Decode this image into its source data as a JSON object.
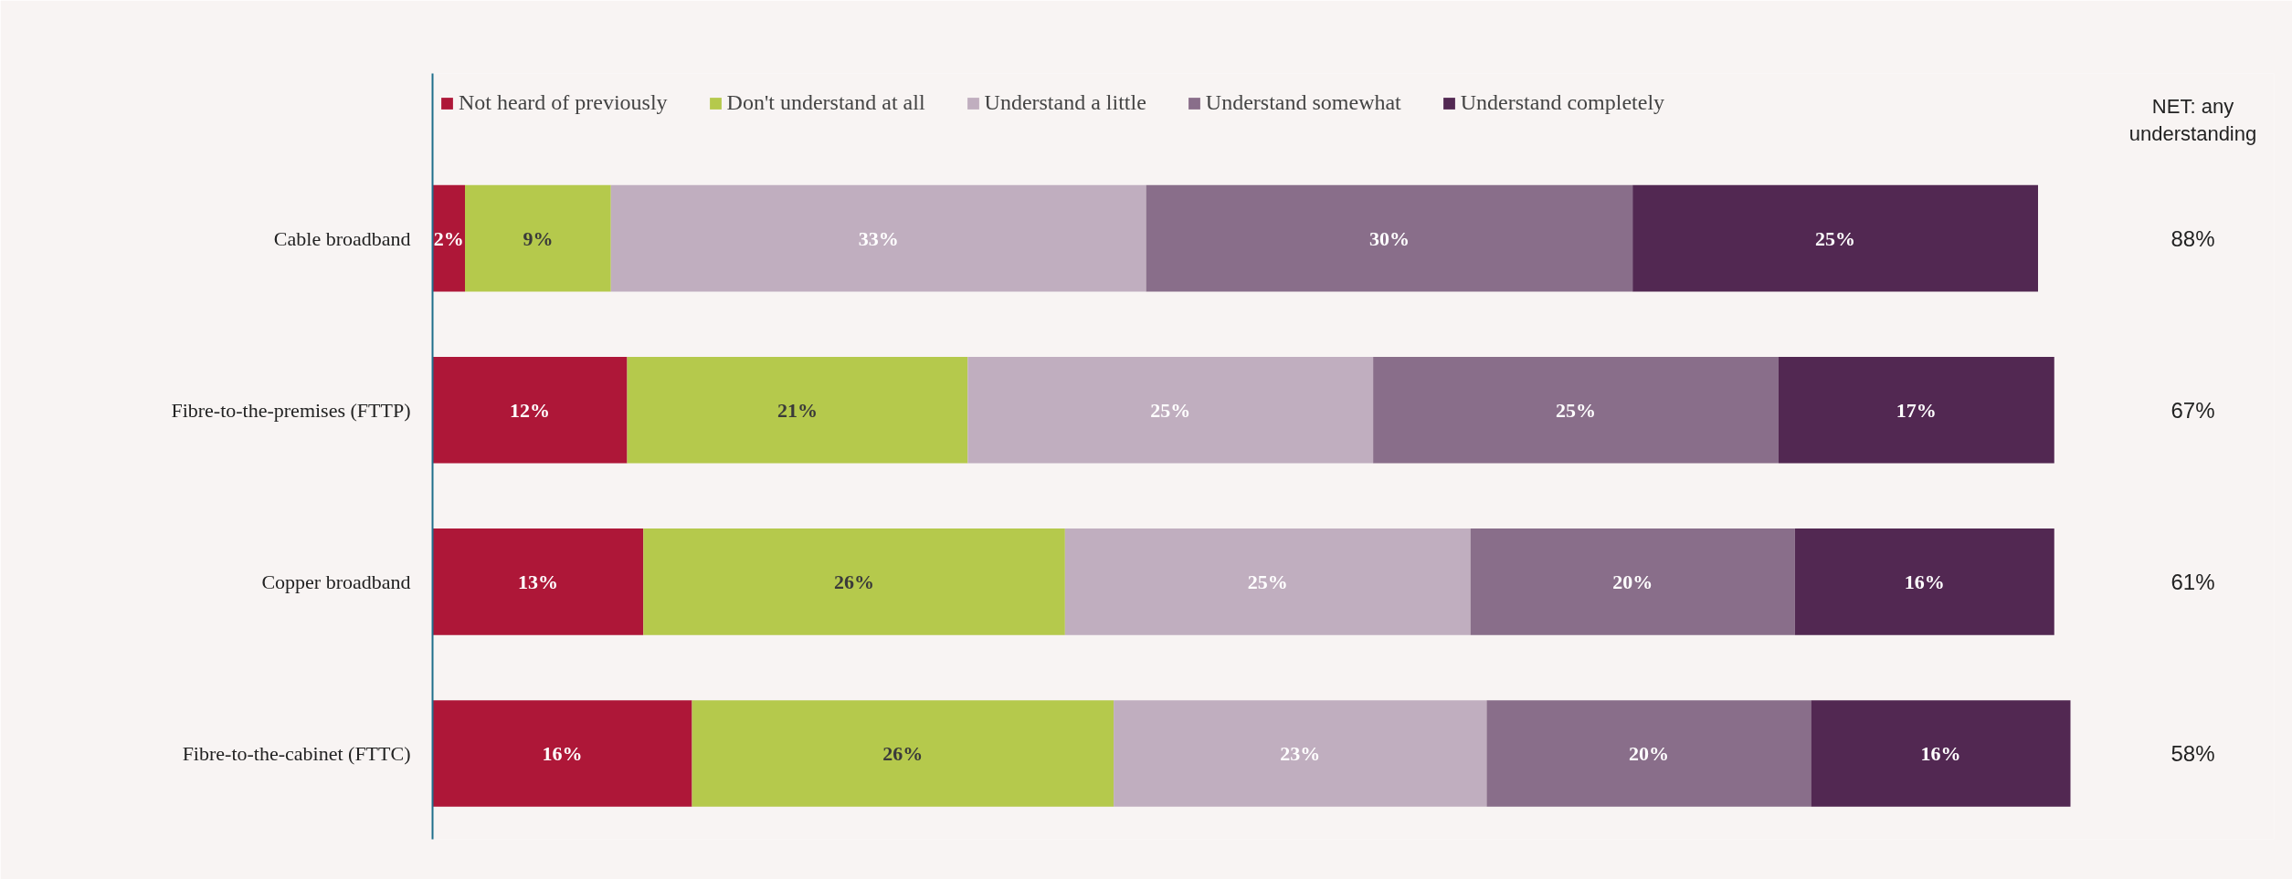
{
  "chart_data": {
    "type": "bar",
    "orientation": "horizontal",
    "stacked": true,
    "legend": "top",
    "grid": false,
    "categories": [
      "Cable broadband",
      "Fibre-to-the-premises (FTTP)",
      "Copper broadband",
      "Fibre-to-the-cabinet (FTTC)"
    ],
    "series": [
      {
        "name": "Not heard of previously",
        "color": "#ae1738",
        "values": [
          2,
          12,
          13,
          16
        ],
        "value_labels": [
          "2%",
          "12%",
          "13%",
          "16%"
        ]
      },
      {
        "name": "Don't understand at all",
        "color": "#b5c94c",
        "values": [
          9,
          21,
          26,
          26
        ],
        "value_labels": [
          "9%",
          "21%",
          "26%",
          "26%"
        ]
      },
      {
        "name": "Understand a little",
        "color": "#c0aebf",
        "values": [
          33,
          25,
          25,
          23
        ],
        "value_labels": [
          "33%",
          "25%",
          "25%",
          "23%"
        ]
      },
      {
        "name": "Understand somewhat",
        "color": "#896e8a",
        "values": [
          30,
          25,
          20,
          20
        ],
        "value_labels": [
          "30%",
          "25%",
          "20%",
          "20%"
        ]
      },
      {
        "name": "Understand completely",
        "color": "#522852",
        "values": [
          25,
          17,
          16,
          16
        ],
        "value_labels": [
          "25%",
          "17%",
          "16%",
          "16%"
        ]
      }
    ],
    "annotations": [
      "NET: any understanding",
      "88%",
      "67%",
      "61%",
      "58%"
    ]
  }
}
